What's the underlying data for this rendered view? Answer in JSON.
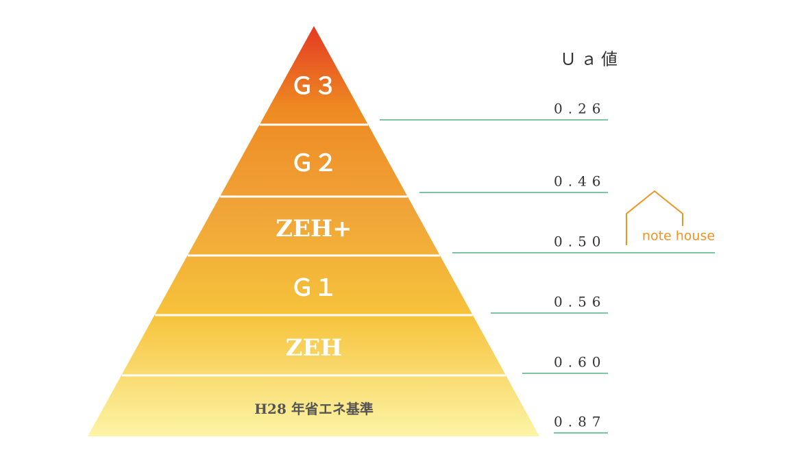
{
  "header": {
    "title": "Ｕａ値"
  },
  "levels": [
    {
      "label": "Ｇ３",
      "ua": "0.26"
    },
    {
      "label": "Ｇ２",
      "ua": "0.46"
    },
    {
      "label": "ZEH+",
      "ua": "0.50"
    },
    {
      "label": "Ｇ１",
      "ua": "0.56"
    },
    {
      "label": "ZEH",
      "ua": "0.60"
    },
    {
      "label": "H28 年省エネ基準",
      "ua": "0.87"
    }
  ],
  "brand": {
    "name": "note house"
  }
}
